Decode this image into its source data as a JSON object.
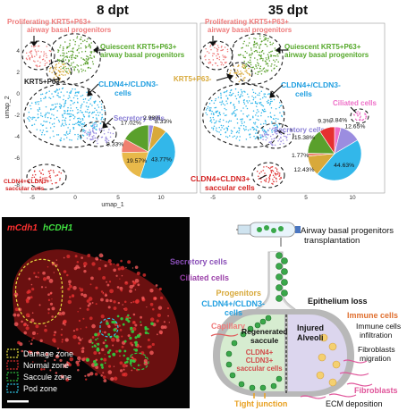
{
  "umap": {
    "title_left": "8 dpt",
    "title_right": "35 dpt",
    "xaxis": "umap_1",
    "yaxis": "umap_2",
    "yticks": [
      "4",
      "2",
      "0",
      "-2",
      "-4",
      "-6",
      "-8"
    ],
    "xticks_left": [
      "-5",
      "0",
      "5",
      "10"
    ],
    "xticks_right": [
      "-5",
      "0",
      "5",
      "10"
    ],
    "clusters": {
      "proliferating": "Proliferating KRT5+P63+ airway basal progenitors",
      "quiescent": "Quiescent KRT5+P63+ airway basal progenitors",
      "krt5": "KRT5+P63-",
      "krt5_right": "KRT5+P63-",
      "cldn_neg": "CLDN4+/CLDN3- cells",
      "secretory": "Secretory cells",
      "saccular": "CLDN4+CLDN3+ saccular cells",
      "ciliated": "Ciliated cells"
    }
  },
  "pie_left": {
    "slices": [
      {
        "label": "2.98%",
        "value": 2.98,
        "color": "#9b8de0"
      },
      {
        "label": "8.33%",
        "value": 8.33,
        "color": "#d8a93a"
      },
      {
        "label": "43.77%",
        "value": 43.77,
        "color": "#32b7ea"
      },
      {
        "label": "19.57%",
        "value": 19.57,
        "color": "#e8b94a"
      },
      {
        "label": "8.33%",
        "value": 8.33,
        "color": "#f08070"
      },
      {
        "label": "17.02%",
        "value": 17.02,
        "color": "#5aa02c"
      }
    ]
  },
  "pie_right": {
    "slices": [
      {
        "label": "3.84%",
        "value": 3.84,
        "color": "#ee6fc8"
      },
      {
        "label": "12.65%",
        "value": 12.65,
        "color": "#9b8de0"
      },
      {
        "label": "44.63%",
        "value": 44.63,
        "color": "#32b7ea"
      },
      {
        "label": "12.43%",
        "value": 12.43,
        "color": "#d8a93a"
      },
      {
        "label": "1.77%",
        "value": 1.77,
        "color": "#f08070"
      },
      {
        "label": "15.38%",
        "value": 15.38,
        "color": "#5aa02c"
      },
      {
        "label": "9.3%",
        "value": 9.3,
        "color": "#e53030"
      }
    ]
  },
  "micro": {
    "title_red": "mCdh1",
    "title_green": "hCDH1",
    "legend": [
      "Damage zone",
      "Normal zone",
      "Saccule zone",
      "Pod zone"
    ],
    "legend_colors": [
      "#e8e040",
      "#e03030",
      "#30c040",
      "#30c8e8"
    ]
  },
  "schematic": {
    "transplant": "Airway basal progenitors transplantation",
    "secretory": "Secretory cells",
    "ciliated": "Ciliated cells",
    "progenitors": "Progenitors",
    "cldn": "CLDN4+/CLDN3- cells",
    "capillary": "Capillary",
    "regenerated": "Regenerated saccule",
    "saccular": "CLDN4+ CLDN3+ saccular cells",
    "tight": "Tight junction",
    "epithelium": "Epithelium loss",
    "injured": "Injured Alveoli",
    "immune": "Immune cells",
    "infiltration": "Immune cells infiltration",
    "fibro_migration": "Fibroblasts migration",
    "fibroblasts": "Fibroblasts",
    "ecm": "ECM deposition"
  }
}
